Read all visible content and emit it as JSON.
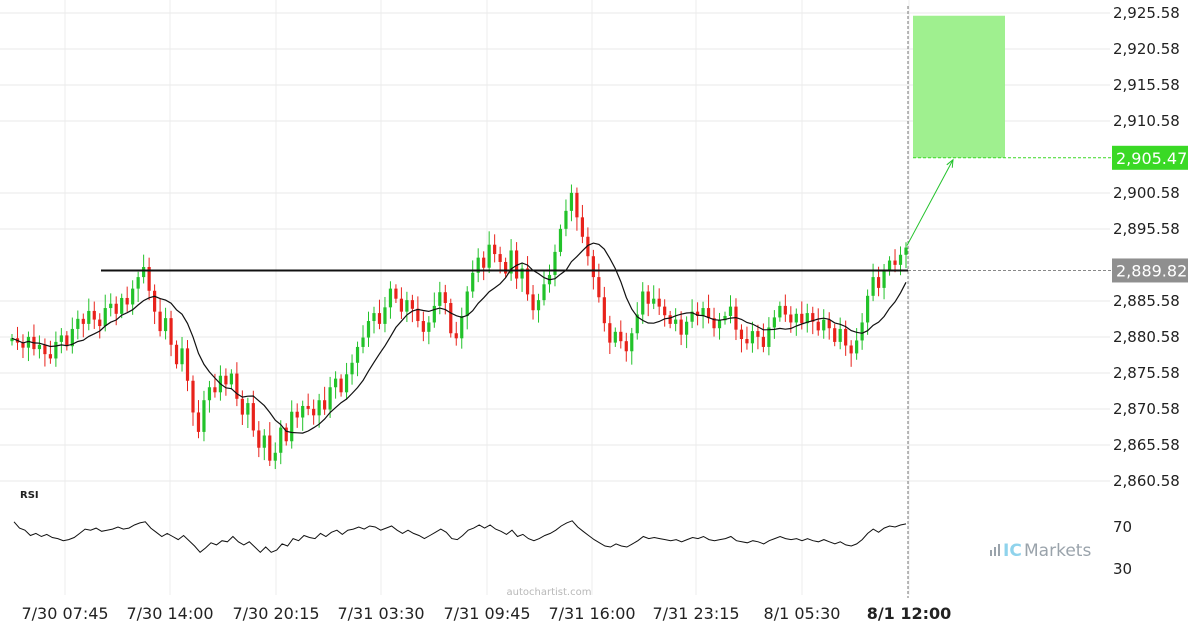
{
  "chart_data": {
    "type": "candlestick",
    "y_axis": {
      "ticks": [
        "2,925.58",
        "2,920.58",
        "2,915.58",
        "2,910.58",
        "2,905.47",
        "2,900.58",
        "2,895.58",
        "2,889.82",
        "2,885.58",
        "2,880.58",
        "2,875.58",
        "2,870.58",
        "2,865.58",
        "2,860.58"
      ],
      "tick_values": [
        2925.58,
        2920.58,
        2915.58,
        2910.58,
        2900.58,
        2895.58,
        2885.58,
        2880.58,
        2875.58,
        2870.58,
        2865.58,
        2860.58
      ],
      "ylim": [
        2859.0,
        2926.0
      ]
    },
    "x_axis": {
      "ticks": [
        "7/30 07:45",
        "7/30 14:00",
        "7/30 20:15",
        "7/31 03:30",
        "7/31 09:45",
        "7/31 16:00",
        "7/31 23:15",
        "8/1 05:30",
        "8/1 12:00"
      ],
      "highlighted_tick": "8/1 12:00"
    },
    "resistance_level": {
      "value": 2889.82,
      "label": "2,889.82"
    },
    "target": {
      "value": 2905.47,
      "label": "2,905.47",
      "zone_top": 2925.2
    },
    "moving_average": "line",
    "candles_close": [
      2880.4,
      2879.8,
      2879.1,
      2880.6,
      2878.9,
      2879.5,
      2878.2,
      2877.6,
      2879.9,
      2880.8,
      2879.3,
      2881.7,
      2883.1,
      2882.4,
      2884.2,
      2883.0,
      2882.1,
      2884.6,
      2885.2,
      2883.8,
      2886.0,
      2885.1,
      2887.3,
      2888.9,
      2890.3,
      2887.0,
      2884.1,
      2881.4,
      2883.2,
      2879.5,
      2876.8,
      2879.0,
      2874.5,
      2870.1,
      2867.4,
      2871.8,
      2873.6,
      2872.9,
      2875.2,
      2874.0,
      2875.5,
      2872.0,
      2869.8,
      2871.4,
      2867.6,
      2865.2,
      2866.9,
      2863.4,
      2864.5,
      2868.0,
      2866.1,
      2870.2,
      2869.4,
      2871.0,
      2870.6,
      2869.7,
      2871.8,
      2870.5,
      2873.6,
      2874.8,
      2872.9,
      2875.4,
      2877.0,
      2879.2,
      2880.5,
      2882.8,
      2883.9,
      2882.4,
      2884.7,
      2887.3,
      2885.9,
      2884.1,
      2885.7,
      2884.5,
      2882.8,
      2881.3,
      2882.6,
      2884.9,
      2886.8,
      2885.3,
      2881.1,
      2880.4,
      2883.5,
      2886.9,
      2889.5,
      2891.6,
      2890.2,
      2893.4,
      2892.1,
      2891.0,
      2889.4,
      2892.6,
      2888.7,
      2890.1,
      2886.5,
      2884.3,
      2885.7,
      2887.9,
      2889.2,
      2892.4,
      2895.6,
      2898.1,
      2900.6,
      2897.2,
      2894.5,
      2891.8,
      2888.9,
      2886.1,
      2882.5,
      2879.8,
      2881.3,
      2880.0,
      2878.6,
      2881.1,
      2883.7,
      2886.9,
      2885.2,
      2885.9,
      2884.8,
      2883.6,
      2882.4,
      2883.0,
      2880.9,
      2882.7,
      2884.1,
      2883.5,
      2884.6,
      2883.2,
      2881.8,
      2882.9,
      2883.5,
      2884.8,
      2881.6,
      2880.3,
      2879.7,
      2881.4,
      2880.6,
      2879.2,
      2881.9,
      2883.3,
      2884.9,
      2883.7,
      2882.6,
      2883.8,
      2882.5,
      2883.9,
      2882.7,
      2881.5,
      2883.0,
      2881.8,
      2879.9,
      2881.7,
      2879.4,
      2878.3,
      2880.1,
      2882.6,
      2886.3,
      2888.9,
      2887.4,
      2889.7,
      2891.2,
      2890.6,
      2892.0,
      2893.0
    ],
    "rsi": {
      "label": "RSI",
      "ticks": [
        "70",
        "30"
      ],
      "tick_values": [
        70,
        30
      ],
      "ylim": [
        20,
        80
      ],
      "values": [
        74,
        68,
        66,
        61,
        63,
        60,
        62,
        59,
        58,
        56,
        57,
        59,
        63,
        67,
        66,
        68,
        65,
        66,
        67,
        69,
        67,
        68,
        71,
        73,
        74,
        68,
        64,
        60,
        63,
        60,
        57,
        61,
        56,
        51,
        45,
        49,
        54,
        52,
        56,
        55,
        60,
        55,
        52,
        55,
        50,
        45,
        50,
        45,
        47,
        53,
        51,
        58,
        56,
        61,
        59,
        58,
        63,
        60,
        64,
        66,
        62,
        66,
        67,
        69,
        67,
        70,
        69,
        66,
        68,
        70,
        66,
        63,
        66,
        63,
        61,
        58,
        61,
        64,
        67,
        64,
        58,
        57,
        61,
        66,
        68,
        71,
        68,
        71,
        67,
        65,
        62,
        66,
        60,
        62,
        58,
        56,
        58,
        61,
        63,
        66,
        70,
        73,
        75,
        69,
        65,
        61,
        57,
        54,
        51,
        50,
        53,
        51,
        50,
        53,
        56,
        60,
        58,
        59,
        58,
        57,
        56,
        57,
        55,
        57,
        59,
        58,
        60,
        57,
        56,
        57,
        58,
        60,
        56,
        55,
        54,
        56,
        55,
        53,
        56,
        58,
        60,
        58,
        57,
        58,
        56,
        58,
        56,
        55,
        57,
        55,
        53,
        55,
        52,
        51,
        53,
        57,
        63,
        67,
        64,
        68,
        70,
        69,
        71,
        72
      ]
    }
  },
  "branding": {
    "watermark": "autochartist.com",
    "logo_ic": "IC",
    "logo_markets": "Markets"
  },
  "colors": {
    "up": "#22c22a",
    "down": "#e8221b",
    "target_zone": "#9ff08f",
    "target_box": "#3ad925",
    "level_box": "#8f8f8f",
    "ma_line": "#111111"
  }
}
